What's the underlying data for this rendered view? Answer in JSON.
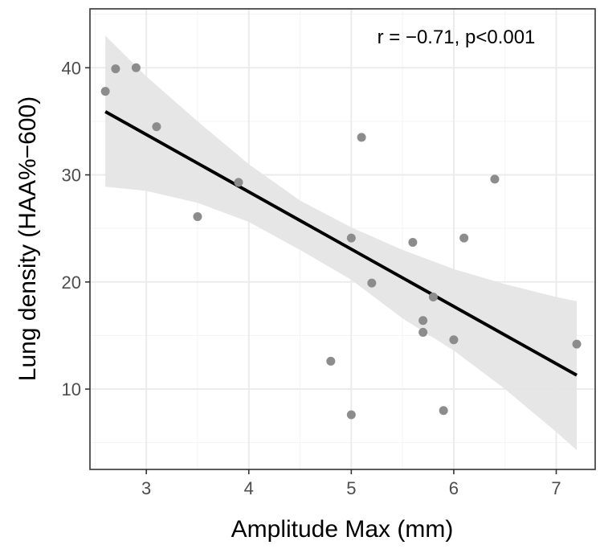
{
  "chart_data": {
    "type": "scatter",
    "xlabel": "Amplitude Max (mm)",
    "ylabel": "Lung density (HAA%−600)",
    "annotation": "r = −0.71, p<0.001",
    "xlim": [
      2.45,
      7.38
    ],
    "ylim": [
      2.5,
      45.5
    ],
    "x_ticks": [
      3,
      4,
      5,
      6,
      7
    ],
    "x_minor": [
      2.5,
      3.5,
      4.5,
      5.5,
      6.5
    ],
    "y_ticks": [
      10,
      20,
      30,
      40
    ],
    "y_minor": [
      5,
      15,
      25,
      35,
      45
    ],
    "grid": true,
    "points": [
      {
        "x": 2.6,
        "y": 37.8
      },
      {
        "x": 2.7,
        "y": 39.9
      },
      {
        "x": 2.9,
        "y": 40.0
      },
      {
        "x": 3.1,
        "y": 34.5
      },
      {
        "x": 3.5,
        "y": 26.1
      },
      {
        "x": 3.9,
        "y": 29.3
      },
      {
        "x": 4.8,
        "y": 12.6
      },
      {
        "x": 5.0,
        "y": 24.1
      },
      {
        "x": 5.0,
        "y": 7.6
      },
      {
        "x": 5.1,
        "y": 33.5
      },
      {
        "x": 5.2,
        "y": 19.9
      },
      {
        "x": 5.6,
        "y": 23.7
      },
      {
        "x": 5.7,
        "y": 16.4
      },
      {
        "x": 5.7,
        "y": 15.3
      },
      {
        "x": 5.8,
        "y": 18.6
      },
      {
        "x": 5.9,
        "y": 8.0
      },
      {
        "x": 6.0,
        "y": 14.6
      },
      {
        "x": 6.1,
        "y": 24.1
      },
      {
        "x": 6.4,
        "y": 29.6
      },
      {
        "x": 7.2,
        "y": 14.2
      }
    ],
    "fit_line": [
      {
        "x": 2.6,
        "y": 35.9
      },
      {
        "x": 7.2,
        "y": 11.3
      }
    ],
    "confidence_band": {
      "x": [
        2.6,
        3.0,
        3.5,
        4.0,
        4.5,
        5.0,
        5.5,
        6.0,
        6.5,
        7.0,
        7.2
      ],
      "upper": [
        43.0,
        39.2,
        35.0,
        31.0,
        27.6,
        25.1,
        23.0,
        21.2,
        19.8,
        18.6,
        18.2
      ],
      "lower": [
        28.9,
        28.5,
        27.4,
        25.6,
        23.0,
        20.2,
        16.6,
        13.6,
        10.0,
        6.0,
        4.3
      ]
    },
    "colors": {
      "point": "#8c8c8c",
      "line": "#000000",
      "band": "#e5e5e5",
      "grid_major": "#ebebeb",
      "grid_minor": "#f3f3f3",
      "panel_border": "#333333",
      "tick": "#333333"
    }
  }
}
